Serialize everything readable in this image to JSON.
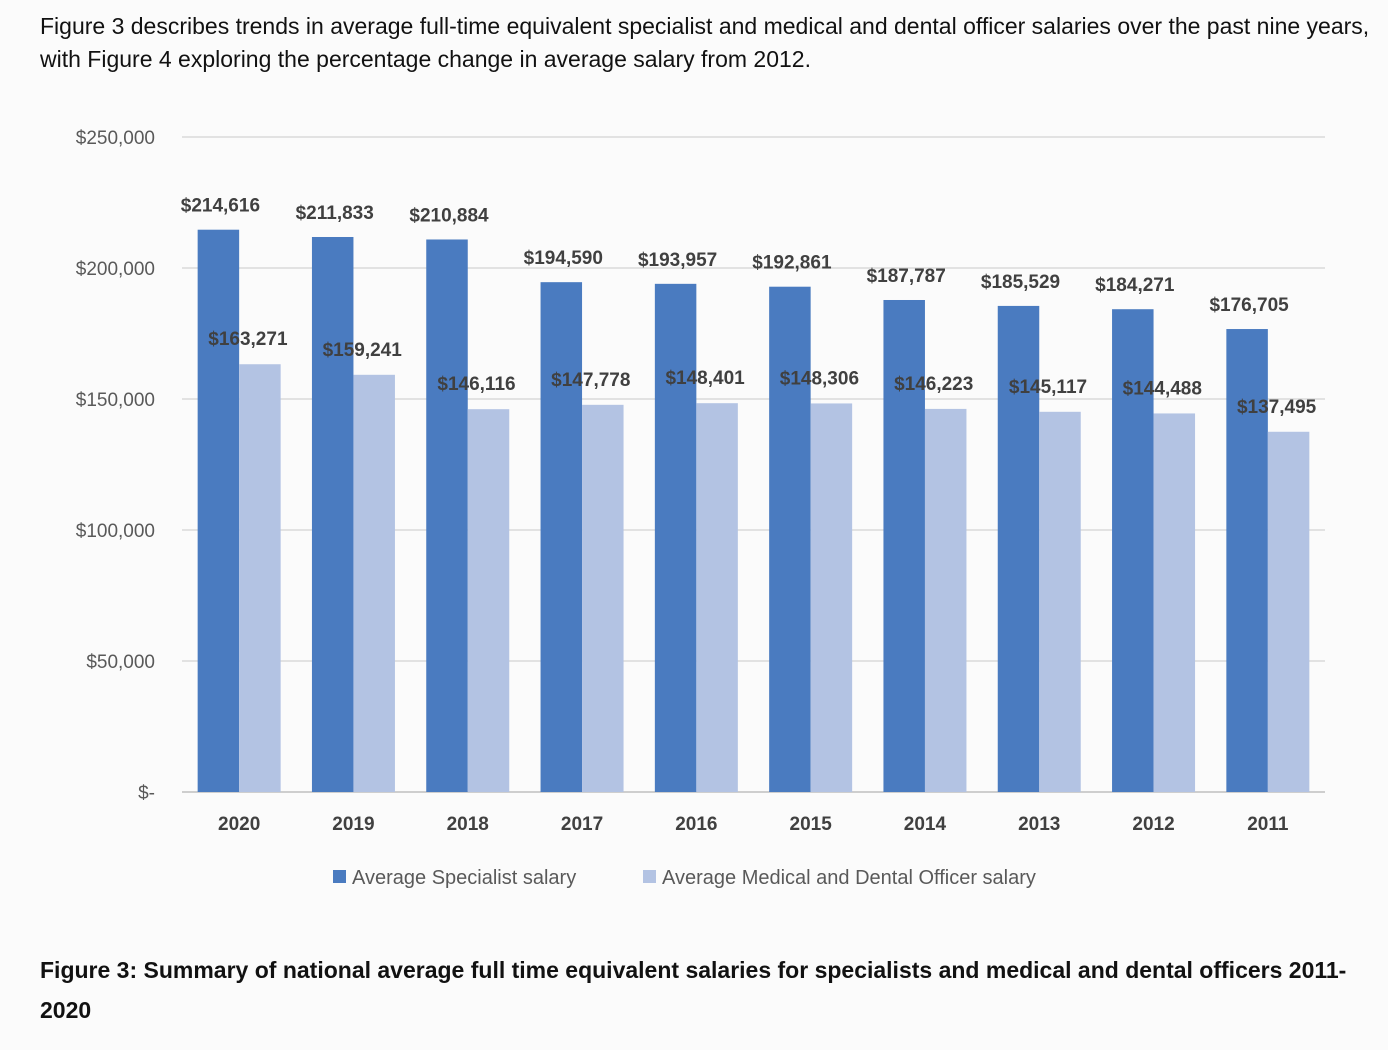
{
  "intro_text": "Figure 3 describes trends in average full-time equivalent specialist and medical and dental officer salaries over the past nine years, with Figure 4 exploring the percentage change in average salary from 2012.",
  "caption": "Figure 3: Summary of national average full time equivalent salaries for specialists and medical and dental officers 2011-2020",
  "chart_data": {
    "type": "bar",
    "categories": [
      "2020",
      "2019",
      "2018",
      "2017",
      "2016",
      "2015",
      "2014",
      "2013",
      "2012",
      "2011"
    ],
    "series": [
      {
        "name": "Average Specialist salary",
        "color": "#4a7bc0",
        "values": [
          214616,
          211833,
          210884,
          194590,
          193957,
          192861,
          187787,
          185529,
          184271,
          176705
        ],
        "labels": [
          "$214,616",
          "$211,833",
          "$210,884",
          "$194,590",
          "$193,957",
          "$192,861",
          "$187,787",
          "$185,529",
          "$184,271",
          "$176,705"
        ]
      },
      {
        "name": "Average Medical and Dental Officer salary",
        "color": "#b3c3e3",
        "values": [
          163271,
          159241,
          146116,
          147778,
          148401,
          148306,
          146223,
          145117,
          144488,
          137495
        ],
        "labels": [
          "$163,271",
          "$159,241",
          "$146,116",
          "$147,778",
          "$148,401",
          "$148,306",
          "$146,223",
          "$145,117",
          "$144,488",
          "$137,495"
        ]
      }
    ],
    "ylim": [
      0,
      250000
    ],
    "yticks": [
      0,
      50000,
      100000,
      150000,
      200000,
      250000
    ],
    "ytick_labels": [
      "$-",
      "$50,000",
      "$100,000",
      "$150,000",
      "$200,000",
      "$250,000"
    ],
    "grid": true,
    "legend": "bottom"
  }
}
